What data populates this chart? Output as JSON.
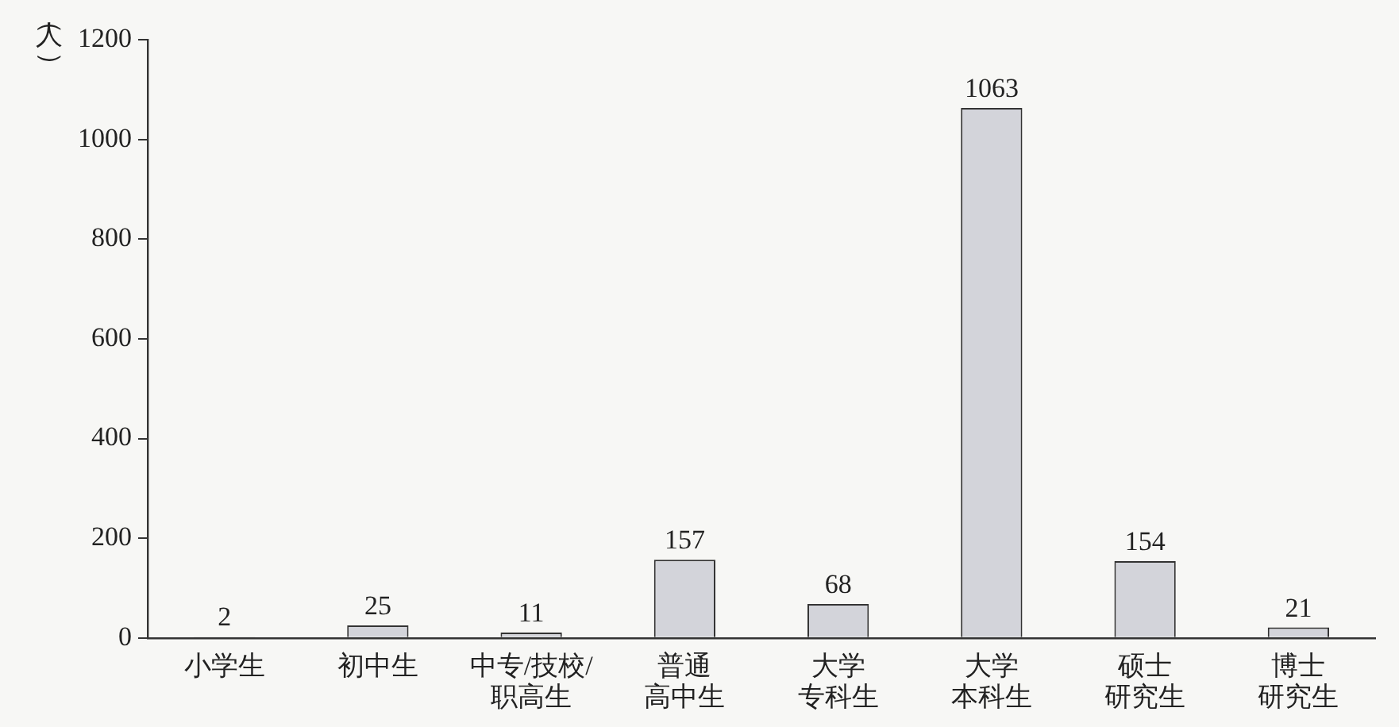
{
  "chart_data": {
    "type": "bar",
    "ylabel": "（人）",
    "categories": [
      "小学生",
      "初中生",
      "中专/技校/职高生",
      "普通高中生",
      "大学专科生",
      "大学本科生",
      "硕士研究生",
      "博士研究生"
    ],
    "values": [
      2,
      25,
      11,
      157,
      68,
      1063,
      154,
      21
    ],
    "color": "#d3d4da",
    "ylim": [
      0,
      1200
    ],
    "yticks": [
      0,
      200,
      400,
      600,
      800,
      1000,
      1200
    ],
    "data_labels": true,
    "grid": false,
    "legend": false
  }
}
